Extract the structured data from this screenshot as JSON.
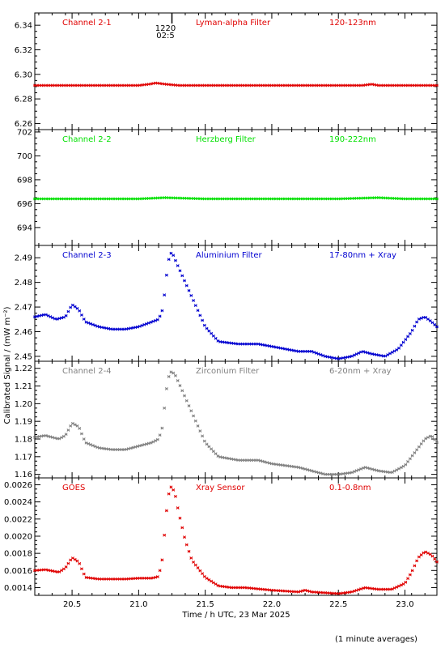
{
  "chart_data": {
    "type": "scatter",
    "xlabel": "Time / h UTC, 23 Mar 2025",
    "ylabel": "Calibrated Signal / (mW m⁻²)",
    "footnote": "(1 minute averages)",
    "xlim": [
      20.22,
      23.24
    ],
    "xticks": [
      20.5,
      21.0,
      21.5,
      22.0,
      22.5,
      23.0
    ],
    "xtick_labels": [
      "20.5",
      "21.0",
      "21.5",
      "22.0",
      "22.5",
      "23.0"
    ],
    "marker_label": [
      "1220",
      "02:5"
    ],
    "marker_time": 21.25,
    "panels": [
      {
        "channel": "Channel 2-1",
        "filter": "Lyman-alpha Filter",
        "range": "120-123nm",
        "color": "#e00000",
        "ylim": [
          6.255,
          6.35
        ],
        "yticks": [
          6.26,
          6.28,
          6.3,
          6.32,
          6.34
        ],
        "ytick_labels": [
          "6.26",
          "6.28",
          "6.30",
          "6.32",
          "6.34"
        ],
        "x": [
          20.22,
          20.5,
          20.9,
          21.0,
          21.08,
          21.13,
          21.2,
          21.3,
          21.5,
          22.0,
          22.5,
          22.68,
          22.75,
          22.8,
          23.0,
          23.24
        ],
        "y": [
          6.291,
          6.291,
          6.291,
          6.291,
          6.292,
          6.293,
          6.292,
          6.291,
          6.291,
          6.291,
          6.291,
          6.291,
          6.292,
          6.291,
          6.291,
          6.291
        ]
      },
      {
        "channel": "Channel 2-2",
        "filter": "Herzberg Filter",
        "range": "190-222nm",
        "color": "#00e000",
        "ylim": [
          692.5,
          702.2
        ],
        "yticks": [
          694,
          696,
          698,
          700,
          702
        ],
        "ytick_labels": [
          "694",
          "696",
          "698",
          "700",
          "702"
        ],
        "x": [
          20.22,
          20.5,
          21.0,
          21.2,
          21.5,
          22.0,
          22.5,
          22.8,
          23.0,
          23.24
        ],
        "y": [
          696.4,
          696.4,
          696.4,
          696.5,
          696.4,
          696.4,
          696.4,
          696.5,
          696.4,
          696.4
        ]
      },
      {
        "channel": "Channel 2-3",
        "filter": "Aluminium Filter",
        "range": "17-80nm + Xray",
        "color": "#0000d0",
        "ylim": [
          2.448,
          2.495
        ],
        "yticks": [
          2.45,
          2.46,
          2.47,
          2.48,
          2.49
        ],
        "ytick_labels": [
          "2.45",
          "2.46",
          "2.47",
          "2.48",
          "2.49"
        ],
        "x": [
          20.22,
          20.3,
          20.38,
          20.45,
          20.5,
          20.55,
          20.6,
          20.7,
          20.8,
          20.9,
          21.0,
          21.1,
          21.15,
          21.18,
          21.2,
          21.22,
          21.24,
          21.26,
          21.3,
          21.4,
          21.5,
          21.6,
          21.75,
          21.9,
          22.0,
          22.1,
          22.2,
          22.3,
          22.4,
          22.5,
          22.6,
          22.68,
          22.75,
          22.85,
          22.95,
          23.05,
          23.1,
          23.15,
          23.2,
          23.24
        ],
        "y": [
          2.466,
          2.467,
          2.465,
          2.466,
          2.471,
          2.469,
          2.464,
          2.462,
          2.461,
          2.461,
          2.462,
          2.464,
          2.465,
          2.469,
          2.478,
          2.488,
          2.492,
          2.491,
          2.486,
          2.474,
          2.462,
          2.456,
          2.455,
          2.455,
          2.454,
          2.453,
          2.452,
          2.452,
          2.45,
          2.449,
          2.45,
          2.452,
          2.451,
          2.45,
          2.453,
          2.46,
          2.465,
          2.466,
          2.464,
          2.462
        ]
      },
      {
        "channel": "Channel 2-4",
        "filter": "Zirconium Filter",
        "range": "6-20nm + Xray",
        "color": "#808080",
        "ylim": [
          1.158,
          1.224
        ],
        "yticks": [
          1.16,
          1.17,
          1.18,
          1.19,
          1.2,
          1.21,
          1.22
        ],
        "ytick_labels": [
          "1.16",
          "1.17",
          "1.18",
          "1.19",
          "1.20",
          "1.21",
          "1.22"
        ],
        "x": [
          20.22,
          20.3,
          20.4,
          20.45,
          20.5,
          20.55,
          20.6,
          20.7,
          20.8,
          20.9,
          21.0,
          21.1,
          21.15,
          21.18,
          21.2,
          21.22,
          21.24,
          21.27,
          21.3,
          21.4,
          21.5,
          21.6,
          21.75,
          21.9,
          22.0,
          22.1,
          22.2,
          22.3,
          22.4,
          22.5,
          22.6,
          22.7,
          22.8,
          22.9,
          23.0,
          23.1,
          23.15,
          23.2,
          23.24
        ],
        "y": [
          1.181,
          1.182,
          1.18,
          1.182,
          1.189,
          1.187,
          1.178,
          1.175,
          1.174,
          1.174,
          1.176,
          1.178,
          1.18,
          1.187,
          1.203,
          1.214,
          1.218,
          1.217,
          1.212,
          1.195,
          1.178,
          1.17,
          1.168,
          1.168,
          1.166,
          1.165,
          1.164,
          1.162,
          1.16,
          1.16,
          1.161,
          1.164,
          1.162,
          1.161,
          1.165,
          1.175,
          1.18,
          1.182,
          1.178
        ]
      },
      {
        "channel": "GOES",
        "filter": "Xray Sensor",
        "range": "0.1-0.8nm",
        "color": "#e00000",
        "ylim": [
          0.00131,
          0.00268
        ],
        "yticks": [
          0.0014,
          0.0016,
          0.0018,
          0.002,
          0.0022,
          0.0024,
          0.0026
        ],
        "ytick_labels": [
          "0.0014",
          "0.0016",
          "0.0018",
          "0.0020",
          "0.0022",
          "0.0024",
          "0.0026"
        ],
        "x": [
          20.22,
          20.3,
          20.4,
          20.45,
          20.5,
          20.55,
          20.6,
          20.7,
          20.8,
          20.9,
          21.0,
          21.1,
          21.15,
          21.18,
          21.2,
          21.22,
          21.24,
          21.27,
          21.3,
          21.35,
          21.4,
          21.5,
          21.6,
          21.7,
          21.8,
          22.0,
          22.2,
          22.25,
          22.3,
          22.5,
          22.6,
          22.7,
          22.8,
          22.9,
          23.0,
          23.05,
          23.1,
          23.15,
          23.2,
          23.24
        ],
        "y": [
          0.0016,
          0.00161,
          0.00158,
          0.00163,
          0.00175,
          0.0017,
          0.00152,
          0.0015,
          0.0015,
          0.0015,
          0.00151,
          0.00151,
          0.00153,
          0.00175,
          0.00215,
          0.00245,
          0.00258,
          0.00252,
          0.00228,
          0.00195,
          0.00172,
          0.00152,
          0.00142,
          0.0014,
          0.0014,
          0.00137,
          0.00135,
          0.00137,
          0.00135,
          0.00133,
          0.00135,
          0.0014,
          0.00138,
          0.00138,
          0.00145,
          0.00158,
          0.00175,
          0.00182,
          0.00178,
          0.0017
        ]
      }
    ]
  }
}
